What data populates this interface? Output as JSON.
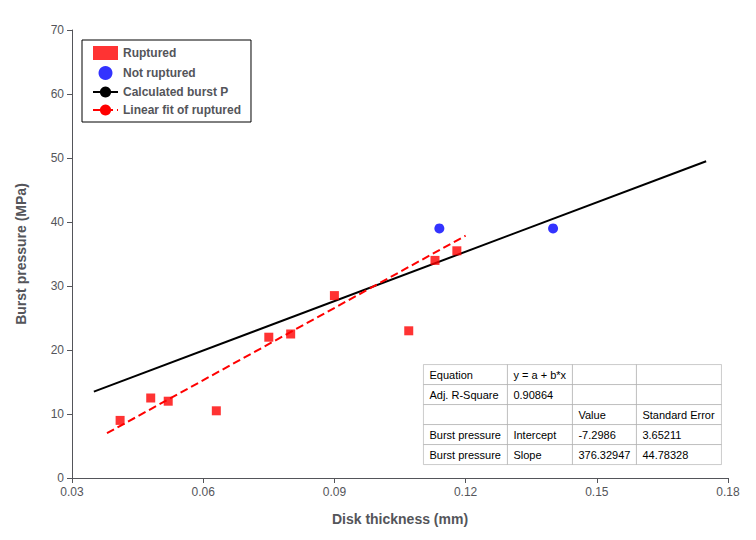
{
  "chart_data": {
    "type": "scatter",
    "xlabel": "Disk thickness (mm)",
    "ylabel": "Burst pressure (MPa)",
    "xlim": [
      0.03,
      0.18
    ],
    "ylim": [
      0,
      70
    ],
    "xticks": [
      0.03,
      0.06,
      0.09,
      0.12,
      0.15,
      0.18
    ],
    "yticks": [
      0,
      10,
      20,
      30,
      40,
      50,
      60,
      70
    ],
    "grid": false,
    "legend": "upper left",
    "series": [
      {
        "name": "Ruptured",
        "type": "scatter",
        "marker": "square",
        "color": "#FF0000",
        "x": [
          0.041,
          0.048,
          0.052,
          0.063,
          0.075,
          0.08,
          0.09,
          0.107,
          0.113,
          0.118
        ],
        "values": [
          9.0,
          12.5,
          12.0,
          10.5,
          22.0,
          22.5,
          28.5,
          23.0,
          34.0,
          35.5
        ]
      },
      {
        "name": "Not ruptured",
        "type": "scatter",
        "marker": "circle",
        "color": "#0000FF",
        "x": [
          0.114,
          0.14
        ],
        "values": [
          39.0,
          39.0
        ]
      },
      {
        "name": "Calculated burst P",
        "type": "line",
        "line_style": "solid",
        "color": "#000000",
        "x": [
          0.035,
          0.175
        ],
        "values": [
          13.5,
          49.5
        ]
      },
      {
        "name": "Linear fit of ruptured",
        "type": "line",
        "line_style": "dashed",
        "color": "#FF0000",
        "x": [
          0.038,
          0.12
        ],
        "values": [
          7.00191986,
          37.8609364
        ]
      }
    ],
    "table": [
      [
        "Equation",
        "y = a + b*x",
        null,
        null
      ],
      [
        "Adj. R-Square",
        "0.90864",
        null,
        null
      ],
      [
        null,
        null,
        "Value",
        "Standard Error"
      ],
      [
        "Burst pressure",
        "Intercept",
        "-7.2986",
        "3.65211"
      ],
      [
        "Burst pressure",
        "Slope",
        "376.32947",
        "44.78328"
      ]
    ]
  }
}
